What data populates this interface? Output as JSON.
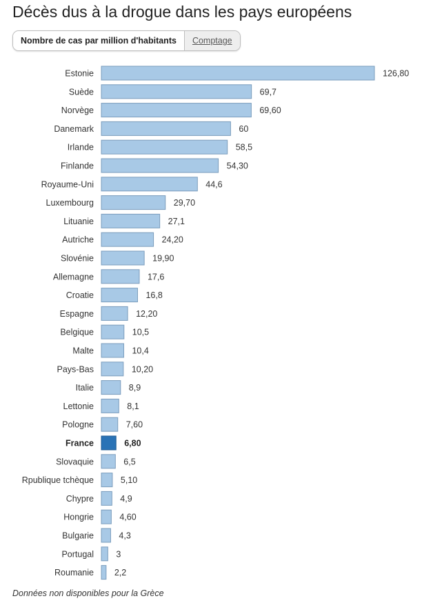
{
  "header": {
    "title": "Décès dus à la drogue dans les pays européens"
  },
  "tabs": [
    {
      "label": "Nombre de cas par million d'habitants",
      "active": true
    },
    {
      "label": "Comptage",
      "active": false
    }
  ],
  "chart_data": {
    "type": "bar",
    "orientation": "horizontal",
    "title": "Décès dus à la drogue dans les pays européens",
    "xlabel": "",
    "ylabel": "",
    "categories": [
      "Estonie",
      "Suède",
      "Norvège",
      "Danemark",
      "Irlande",
      "Finlande",
      "Royaume-Uni",
      "Luxembourg",
      "Lituanie",
      "Autriche",
      "Slovénie",
      "Allemagne",
      "Croatie",
      "Espagne",
      "Belgique",
      "Malte",
      "Pays-Bas",
      "Italie",
      "Lettonie",
      "Pologne",
      "France",
      "Slovaquie",
      "Rpublique tchèque",
      "Chypre",
      "Hongrie",
      "Bulgarie",
      "Portugal",
      "Roumanie"
    ],
    "values": [
      126.8,
      69.7,
      69.6,
      60,
      58.5,
      54.3,
      44.6,
      29.7,
      27.1,
      24.2,
      19.9,
      17.6,
      16.8,
      12.2,
      10.5,
      10.4,
      10.2,
      8.9,
      8.1,
      7.6,
      6.8,
      6.5,
      5.1,
      4.9,
      4.6,
      4.3,
      3,
      2.2
    ],
    "value_labels": [
      "126,80",
      "69,7",
      "69,60",
      "60",
      "58,5",
      "54,30",
      "44,6",
      "29,70",
      "27,1",
      "24,20",
      "19,90",
      "17,6",
      "16,8",
      "12,20",
      "10,5",
      "10,4",
      "10,20",
      "8,9",
      "8,1",
      "7,60",
      "6,80",
      "6,5",
      "5,10",
      "4,9",
      "4,60",
      "4,3",
      "3",
      "2,2"
    ],
    "highlight": "France",
    "xlim": [
      0,
      126.8
    ],
    "grid": false,
    "colors": {
      "bar": "#a8c9e6",
      "bar_stroke": "#7a9cbc",
      "highlight": "#2a73b6",
      "highlight_stroke": "#1d5a92"
    }
  },
  "footnote": "Données non disponibles pour la Grèce"
}
